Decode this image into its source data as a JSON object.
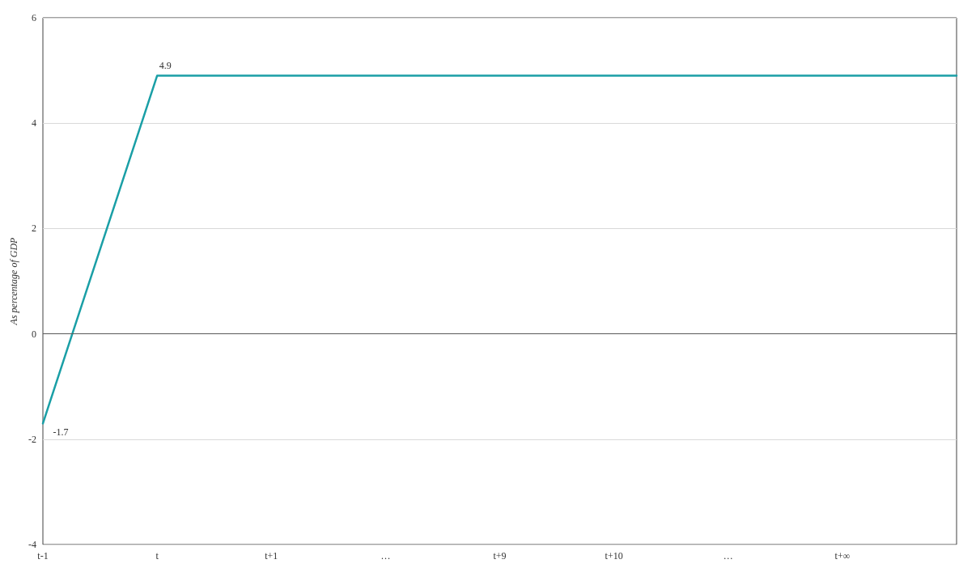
{
  "chart_data": {
    "type": "line",
    "ylabel": "As percentage of GDP",
    "categories": [
      "t-1",
      "t",
      "t+1",
      "…",
      "t+9",
      "t+10",
      "…",
      "t+∞",
      null
    ],
    "series": [
      {
        "color": "#1a9fa6",
        "values": [
          -1.7,
          4.9,
          4.9,
          4.9,
          4.9,
          4.9,
          4.9,
          4.9,
          4.9
        ],
        "value_labels": [
          "-1.7",
          "4.9",
          null,
          null,
          null,
          null,
          null,
          null,
          null
        ]
      }
    ],
    "ylim": [
      -4,
      6
    ],
    "yticks": [
      -4,
      -2,
      0,
      2,
      4,
      6
    ],
    "grid": "y",
    "marker": "none",
    "line_style": "solid",
    "ref_lines": [
      {
        "axis": "y",
        "value": 0,
        "color": "#595959"
      }
    ]
  }
}
